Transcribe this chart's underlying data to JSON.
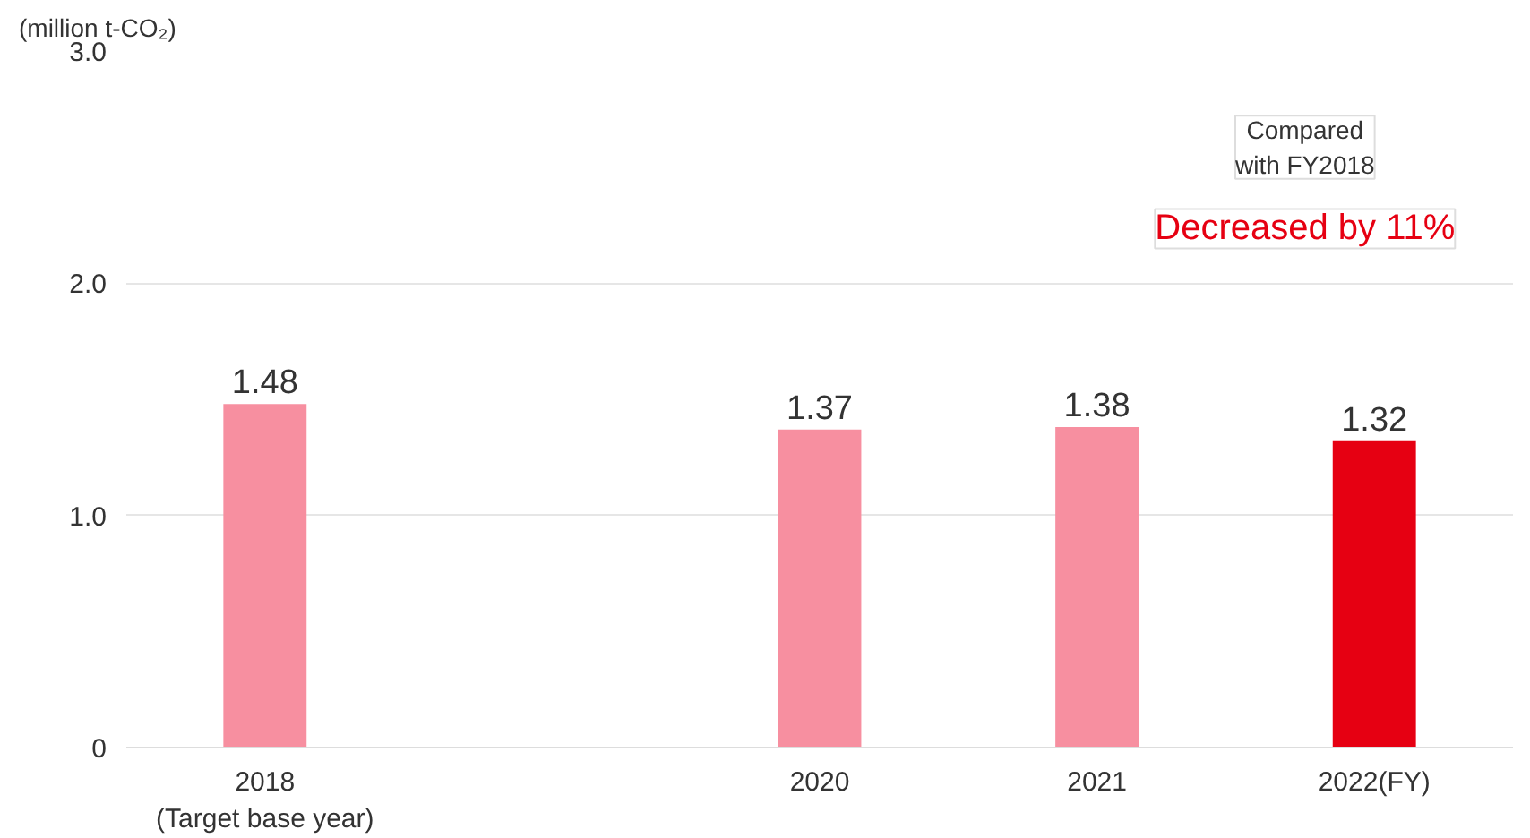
{
  "chart_data": {
    "type": "bar",
    "ylabel": "(million t-CO₂)",
    "categories": [
      "2018\n(Target base year)",
      null,
      "2020",
      "2021",
      "2022(FY)"
    ],
    "values": [
      1.48,
      null,
      1.37,
      1.38,
      1.32
    ],
    "colors": [
      "#f78fa0",
      null,
      "#f78fa0",
      "#f78fa0",
      "#e60012"
    ],
    "ylim": [
      0,
      3
    ],
    "yticks": [
      {
        "value": 0,
        "label": "0"
      },
      {
        "value": 1,
        "label": "1.0"
      },
      {
        "value": 2,
        "label": "2.0"
      },
      {
        "value": 3,
        "label": "3.0"
      }
    ],
    "grid": "y",
    "data_labels": true,
    "annotations": [
      "Compared\nwith FY2018",
      "Decreased by 11%"
    ]
  }
}
